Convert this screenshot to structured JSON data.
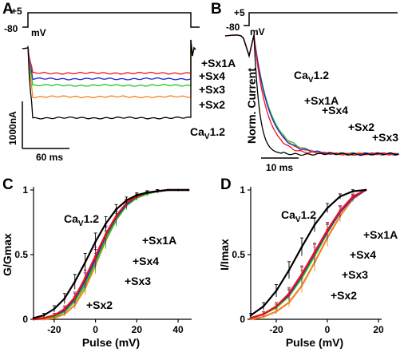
{
  "colors": {
    "CaV12": "#000000",
    "Sx1A": "#e8141c",
    "Sx4": "#2222dd",
    "Sx3": "#1ec81e",
    "Sx2": "#f58220"
  },
  "panels": {
    "A": {
      "label": "A",
      "protocol": {
        "top": "+5",
        "bottom": "-80",
        "unit": "mV"
      },
      "scale": {
        "y": "1000nA",
        "x": "60 ms"
      },
      "traces": [
        {
          "name": "+Sx1A",
          "color_key": "Sx1A",
          "level": 0.33
        },
        {
          "name": "+Sx4",
          "color_key": "Sx4",
          "level": 0.4
        },
        {
          "name": "+Sx3",
          "color_key": "Sx3",
          "level": 0.48
        },
        {
          "name": "+Sx2",
          "color_key": "Sx2",
          "level": 0.62
        },
        {
          "name": "CaV1.2",
          "color_key": "CaV12",
          "level": 0.88
        }
      ],
      "labels": {
        "Sx1A": "+Sx1A",
        "Sx4": "+Sx4",
        "Sx3": "+Sx3",
        "Sx2": "+Sx2",
        "cav_main": "Ca",
        "cav_sub": "V",
        "cav_tail": "1.2"
      }
    },
    "B": {
      "label": "B",
      "protocol": {
        "top": "+5",
        "bottom": "-80",
        "unit": "mV"
      },
      "scale": {
        "x": "10 ms"
      },
      "ylabel": "Norm. Current",
      "labels": {
        "Sx1A": "+Sx1A",
        "Sx4": "+Sx4",
        "Sx2": "+Sx2",
        "Sx3": "+Sx3",
        "cav_main": "Ca",
        "cav_sub": "V",
        "cav_tail": "1.2"
      }
    },
    "C": {
      "label": "C",
      "labels": {
        "Sx1A": "+Sx1A",
        "Sx4": "+Sx4",
        "Sx3": "+Sx3",
        "Sx2": "+Sx2",
        "cav_main": "Ca",
        "cav_sub": "V",
        "cav_tail": "1.2"
      }
    },
    "D": {
      "label": "D",
      "labels": {
        "Sx1A": "+Sx1A",
        "Sx4": "+Sx4",
        "Sx3": "+Sx3",
        "Sx2": "+Sx2",
        "cav_main": "Ca",
        "cav_sub": "V",
        "cav_tail": "1.2"
      }
    }
  },
  "chart_data": [
    {
      "type": "line",
      "panel": "C",
      "xlabel": "Pulse (mV)",
      "ylabel": "G/Gmax",
      "xlim": [
        -30,
        45
      ],
      "ylim": [
        0,
        1
      ],
      "xticks": [
        -20,
        0,
        20,
        40
      ],
      "yticks": [
        0,
        0.5,
        1
      ],
      "x": [
        -30,
        -25,
        -20,
        -15,
        -10,
        -5,
        0,
        5,
        10,
        15,
        20,
        25,
        30,
        35,
        40,
        45
      ],
      "series": [
        {
          "name": "CaV1.2",
          "color_key": "CaV12",
          "values": [
            0.01,
            0.03,
            0.08,
            0.16,
            0.29,
            0.44,
            0.6,
            0.74,
            0.85,
            0.92,
            0.96,
            0.98,
            0.99,
            1.0,
            1.0,
            1.0
          ]
        },
        {
          "name": "+Sx1A",
          "color_key": "Sx1A",
          "values": [
            0.0,
            0.01,
            0.03,
            0.08,
            0.17,
            0.32,
            0.49,
            0.66,
            0.8,
            0.9,
            0.95,
            0.98,
            0.99,
            1.0,
            1.0,
            1.0
          ]
        },
        {
          "name": "+Sx4",
          "color_key": "Sx4",
          "values": [
            0.0,
            0.01,
            0.03,
            0.07,
            0.16,
            0.3,
            0.47,
            0.65,
            0.79,
            0.89,
            0.95,
            0.98,
            0.99,
            1.0,
            1.0,
            1.0
          ]
        },
        {
          "name": "+Sx3",
          "color_key": "Sx3",
          "values": [
            0.0,
            0.01,
            0.02,
            0.06,
            0.14,
            0.27,
            0.44,
            0.62,
            0.77,
            0.88,
            0.94,
            0.97,
            0.99,
            1.0,
            1.0,
            1.0
          ]
        },
        {
          "name": "+Sx2",
          "color_key": "Sx2",
          "values": [
            0.0,
            0.0,
            0.01,
            0.04,
            0.11,
            0.24,
            0.42,
            0.61,
            0.77,
            0.88,
            0.94,
            0.97,
            0.99,
            1.0,
            1.0,
            1.0
          ]
        }
      ]
    },
    {
      "type": "line",
      "panel": "D",
      "xlabel": "Pulse (mV)",
      "ylabel": "I/Imax",
      "xlim": [
        -30,
        20
      ],
      "ylim": [
        0,
        1
      ],
      "xticks": [
        -20,
        0,
        20
      ],
      "yticks": [
        0,
        0.5,
        1
      ],
      "x": [
        -30,
        -25,
        -20,
        -15,
        -10,
        -5,
        0,
        5,
        10,
        15
      ],
      "series": [
        {
          "name": "CaV1.2",
          "color_key": "CaV12",
          "values": [
            0.03,
            0.1,
            0.22,
            0.38,
            0.56,
            0.73,
            0.86,
            0.95,
            0.99,
            1.0
          ]
        },
        {
          "name": "+Sx1A",
          "color_key": "Sx1A",
          "values": [
            0.01,
            0.04,
            0.1,
            0.2,
            0.35,
            0.52,
            0.69,
            0.84,
            0.95,
            1.0
          ]
        },
        {
          "name": "+Sx4",
          "color_key": "Sx4",
          "values": [
            0.01,
            0.04,
            0.1,
            0.19,
            0.34,
            0.51,
            0.68,
            0.83,
            0.94,
            1.0
          ]
        },
        {
          "name": "+Sx3",
          "color_key": "Sx3",
          "values": [
            0.01,
            0.04,
            0.09,
            0.18,
            0.32,
            0.49,
            0.67,
            0.83,
            0.94,
            1.0
          ]
        },
        {
          "name": "+Sx2",
          "color_key": "Sx2",
          "values": [
            0.0,
            0.02,
            0.06,
            0.13,
            0.26,
            0.44,
            0.63,
            0.8,
            0.93,
            1.0
          ]
        }
      ]
    }
  ]
}
